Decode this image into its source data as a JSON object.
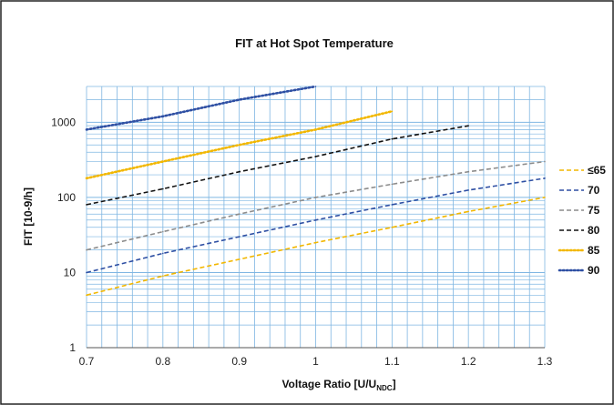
{
  "chart_data": {
    "type": "line",
    "title": "FIT at Hot Spot Temperature",
    "xlabel": {
      "main": "Voltage Ratio [U/U",
      "sub": "NDC",
      "end": "]"
    },
    "ylabel": "FIT [10-9/h]",
    "xlim": [
      0.7,
      1.3
    ],
    "ylim": [
      1,
      3000
    ],
    "yscale": "log",
    "grid": true,
    "legend_position": "right",
    "x_ticks": [
      "0.7",
      "0.8",
      "0.9",
      "1",
      "1.1",
      "1.2",
      "1.3"
    ],
    "x_tick_values": [
      0.7,
      0.8,
      0.9,
      1.0,
      1.1,
      1.2,
      1.3
    ],
    "y_ticks": [
      "1",
      "10",
      "100",
      "1000"
    ],
    "y_tick_values": [
      1,
      10,
      100,
      1000
    ],
    "series": [
      {
        "name": "≤65",
        "color": "#f2b700",
        "dots": false,
        "x": [
          0.7,
          0.8,
          0.9,
          1.0,
          1.1,
          1.2,
          1.3
        ],
        "y": [
          5,
          9,
          15,
          25,
          40,
          65,
          100
        ]
      },
      {
        "name": "70",
        "color": "#2e4fa3",
        "dots": false,
        "x": [
          0.7,
          0.8,
          0.9,
          1.0,
          1.1,
          1.2,
          1.3
        ],
        "y": [
          10,
          18,
          30,
          50,
          80,
          125,
          180
        ]
      },
      {
        "name": "75",
        "color": "#8c8c8c",
        "dots": false,
        "x": [
          0.7,
          0.8,
          0.9,
          1.0,
          1.1,
          1.2,
          1.3
        ],
        "y": [
          20,
          35,
          60,
          100,
          150,
          220,
          300
        ]
      },
      {
        "name": "80",
        "color": "#111111",
        "dots": false,
        "x": [
          0.7,
          0.8,
          0.9,
          1.0,
          1.1,
          1.2
        ],
        "y": [
          80,
          130,
          220,
          350,
          600,
          900
        ]
      },
      {
        "name": "85",
        "color": "#f2b700",
        "dots": true,
        "x": [
          0.7,
          0.8,
          0.9,
          1.0,
          1.1
        ],
        "y": [
          180,
          300,
          500,
          800,
          1400
        ]
      },
      {
        "name": "90",
        "color": "#2e4fa3",
        "dots": true,
        "x": [
          0.7,
          0.8,
          0.9,
          1.0
        ],
        "y": [
          800,
          1200,
          2000,
          3000
        ]
      }
    ]
  }
}
